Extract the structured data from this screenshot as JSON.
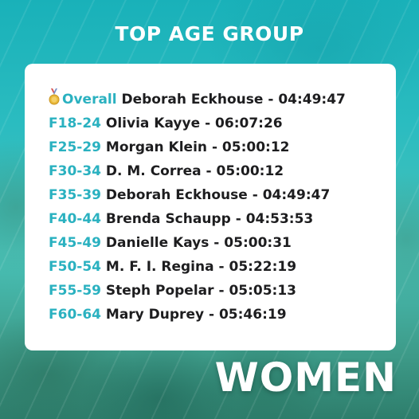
{
  "header": {
    "title": "TOP AGE GROUP"
  },
  "results": [
    {
      "category": "Overall",
      "name": "Deborah Eckhouse",
      "time": "04:49:47",
      "medal": "gold-medal-icon"
    },
    {
      "category": "F18-24",
      "name": "Olivia Kayye",
      "time": "06:07:26"
    },
    {
      "category": "F25-29",
      "name": "Morgan Klein",
      "time": "05:00:12"
    },
    {
      "category": "F30-34",
      "name": "D. M. Correa",
      "time": "05:00:12"
    },
    {
      "category": "F35-39",
      "name": "Deborah Eckhouse",
      "time": "04:49:47"
    },
    {
      "category": "F40-44",
      "name": "Brenda Schaupp",
      "time": "04:53:53"
    },
    {
      "category": "F45-49",
      "name": "Danielle Kays",
      "time": "05:00:31"
    },
    {
      "category": "F50-54",
      "name": "M. F. I. Regina",
      "time": "05:22:19"
    },
    {
      "category": "F55-59",
      "name": "Steph Popelar",
      "time": "05:05:13"
    },
    {
      "category": "F60-64",
      "name": "Mary Duprey",
      "time": "05:46:19"
    }
  ],
  "footer": {
    "label": "WOMEN"
  },
  "colors": {
    "accent": "#2ab1c0",
    "text": "#1d1d1f",
    "card": "#ffffff"
  }
}
